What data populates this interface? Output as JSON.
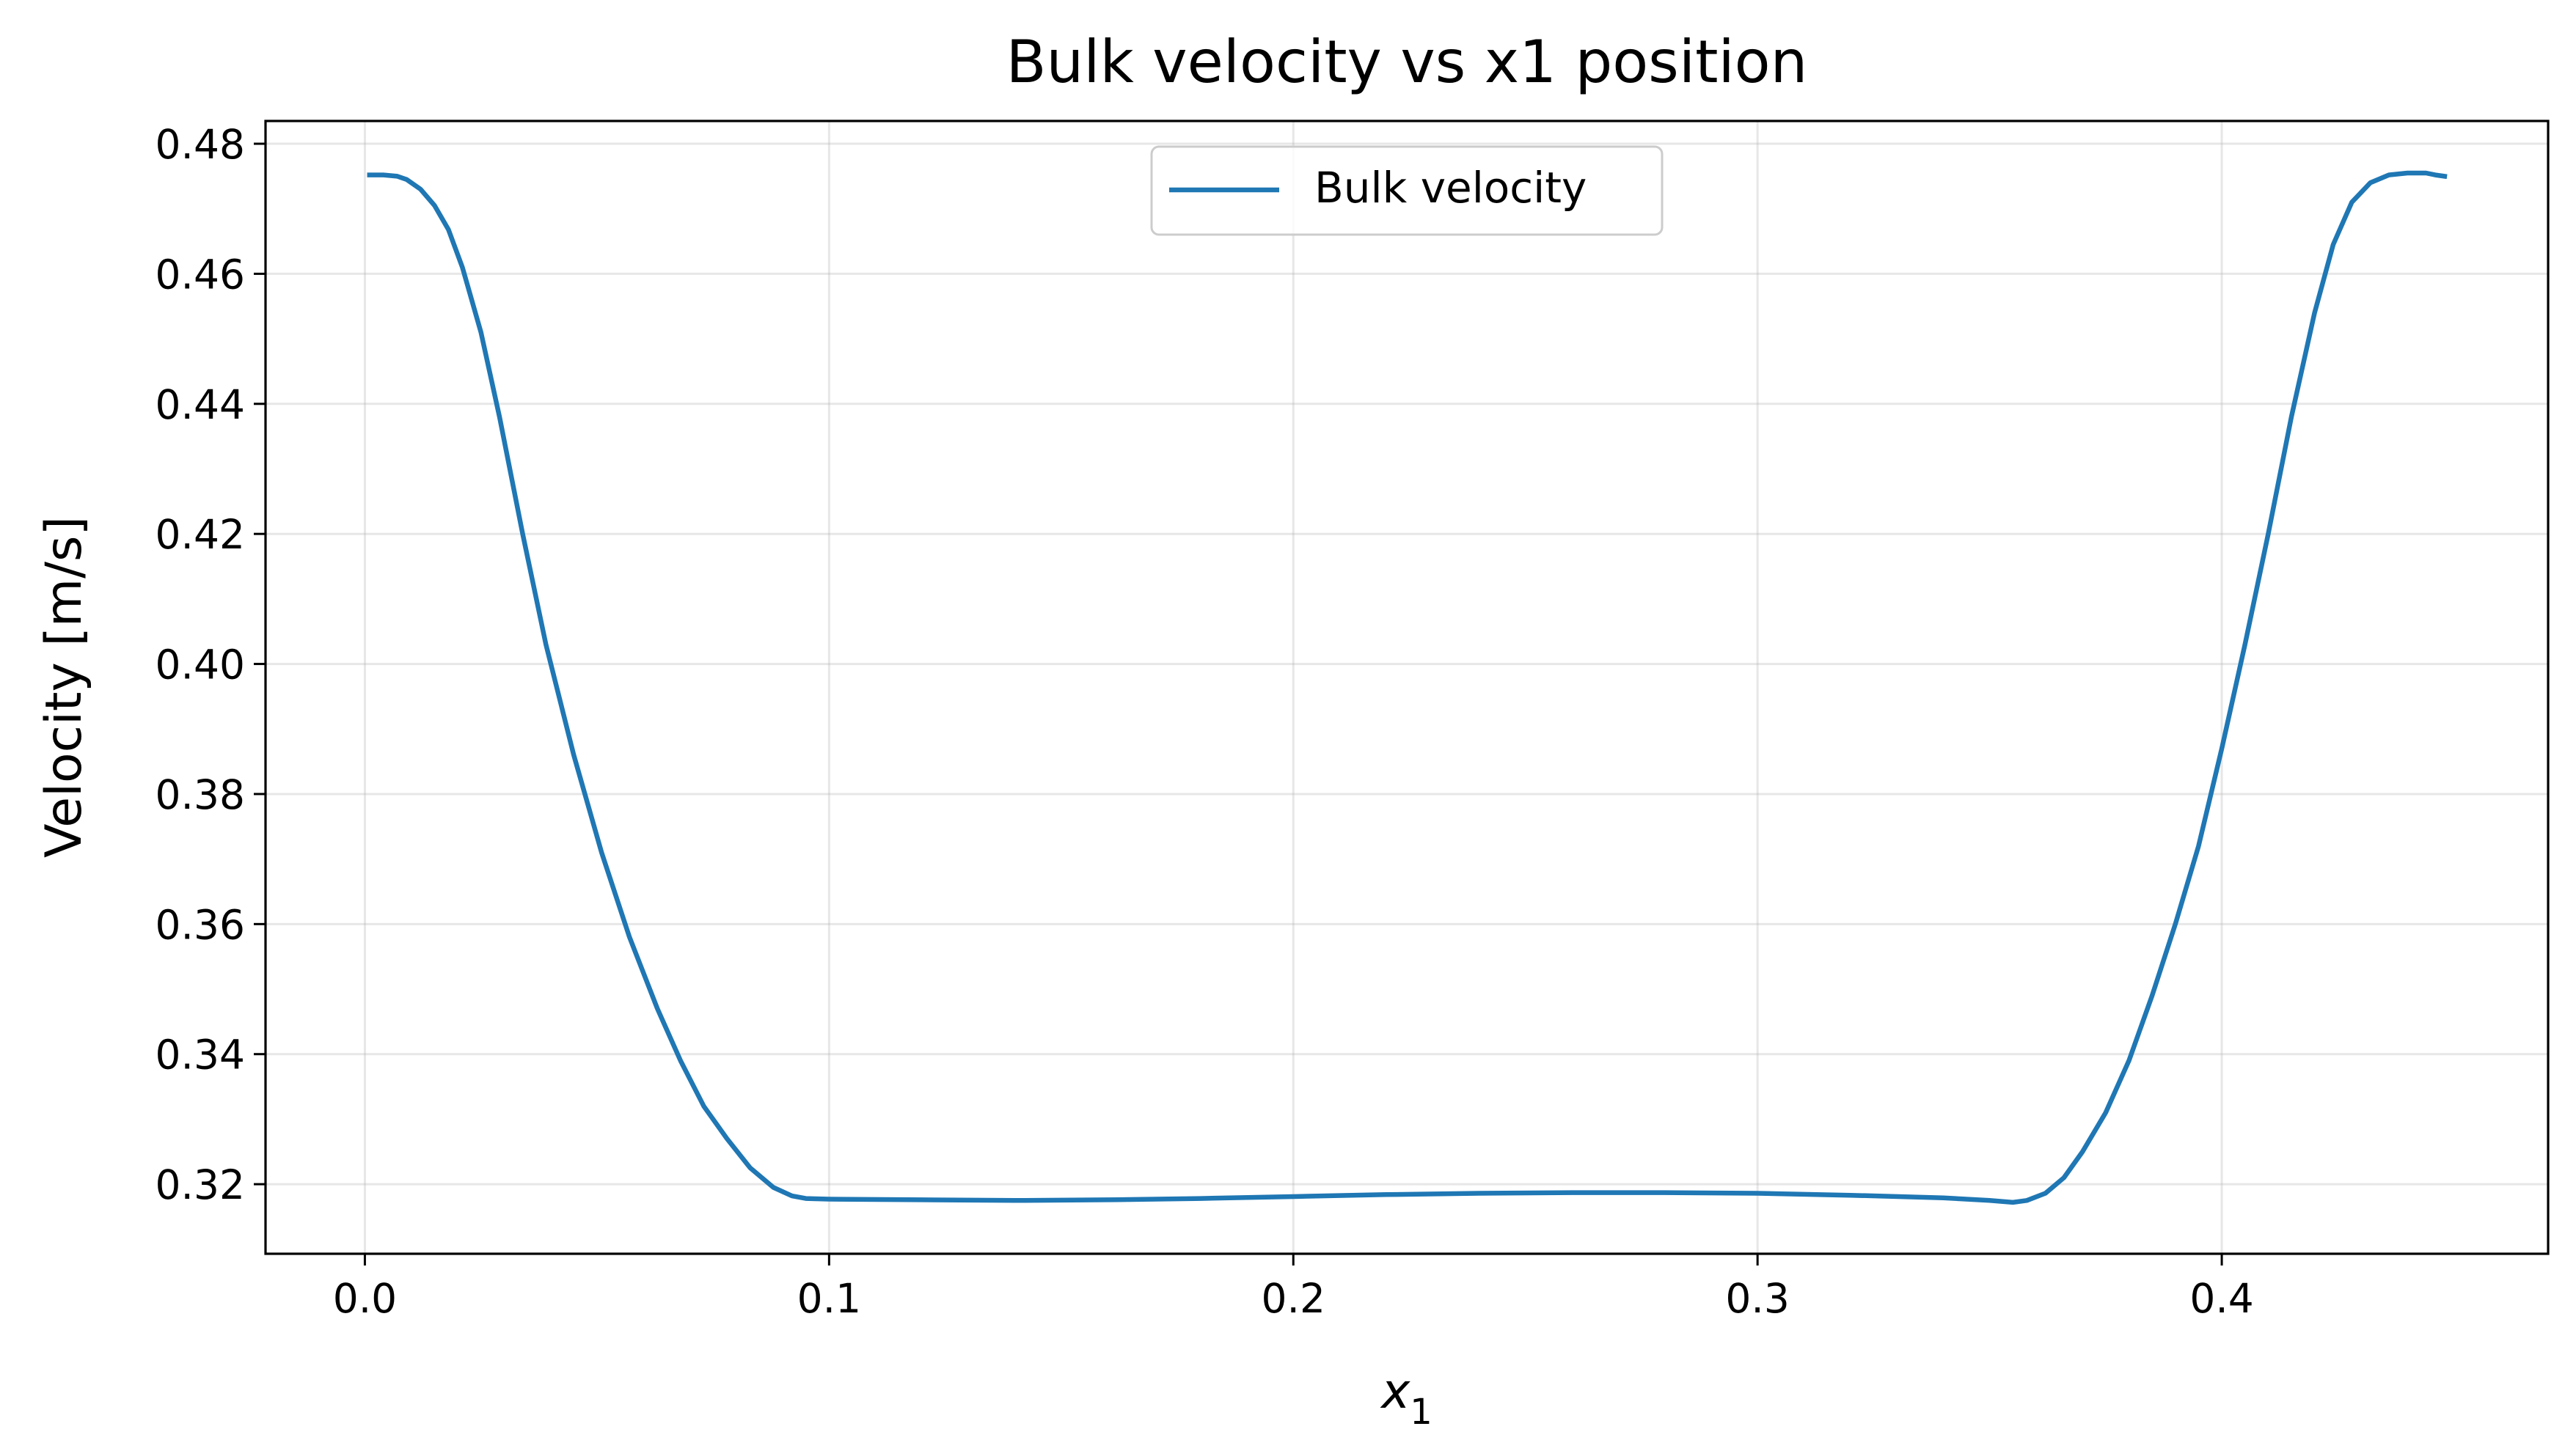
{
  "chart_data": {
    "type": "line",
    "title": "Bulk velocity vs x1 position",
    "xlabel": "x",
    "xlabel_subscript": "1",
    "ylabel": "Velocity [m/s]",
    "xlim": [
      -0.0214,
      0.4703
    ],
    "ylim": [
      0.3093,
      0.4835
    ],
    "xticks": [
      0.0,
      0.1,
      0.2,
      0.3,
      0.4
    ],
    "xtick_labels": [
      "0.0",
      "0.1",
      "0.2",
      "0.3",
      "0.4"
    ],
    "yticks": [
      0.32,
      0.34,
      0.36,
      0.38,
      0.4,
      0.42,
      0.44,
      0.46,
      0.48
    ],
    "ytick_labels": [
      "0.32",
      "0.34",
      "0.36",
      "0.38",
      "0.40",
      "0.42",
      "0.44",
      "0.46",
      "0.48"
    ],
    "grid": true,
    "legend_position": "top-center",
    "series": [
      {
        "name": "Bulk velocity",
        "color": "#1f77b4",
        "x": [
          0.001,
          0.004,
          0.007,
          0.009,
          0.012,
          0.015,
          0.018,
          0.021,
          0.025,
          0.029,
          0.034,
          0.039,
          0.045,
          0.051,
          0.057,
          0.063,
          0.068,
          0.073,
          0.078,
          0.083,
          0.088,
          0.092,
          0.095,
          0.1,
          0.12,
          0.14,
          0.16,
          0.18,
          0.2,
          0.22,
          0.24,
          0.26,
          0.28,
          0.3,
          0.32,
          0.34,
          0.35,
          0.355,
          0.358,
          0.362,
          0.366,
          0.37,
          0.375,
          0.38,
          0.385,
          0.39,
          0.395,
          0.4,
          0.405,
          0.41,
          0.415,
          0.42,
          0.424,
          0.428,
          0.432,
          0.436,
          0.44,
          0.444,
          0.446,
          0.448
        ],
        "y": [
          0.4752,
          0.4752,
          0.475,
          0.4745,
          0.473,
          0.4705,
          0.4668,
          0.461,
          0.451,
          0.438,
          0.42,
          0.403,
          0.386,
          0.371,
          0.358,
          0.347,
          0.339,
          0.332,
          0.327,
          0.3225,
          0.3195,
          0.3182,
          0.3178,
          0.3177,
          0.3176,
          0.3175,
          0.3176,
          0.3178,
          0.3181,
          0.3184,
          0.3186,
          0.3187,
          0.3187,
          0.3186,
          0.3183,
          0.3179,
          0.3175,
          0.3172,
          0.3175,
          0.3186,
          0.321,
          0.325,
          0.331,
          0.339,
          0.349,
          0.36,
          0.372,
          0.387,
          0.403,
          0.42,
          0.438,
          0.454,
          0.4645,
          0.471,
          0.474,
          0.4752,
          0.4755,
          0.4755,
          0.4752,
          0.475
        ]
      }
    ]
  }
}
